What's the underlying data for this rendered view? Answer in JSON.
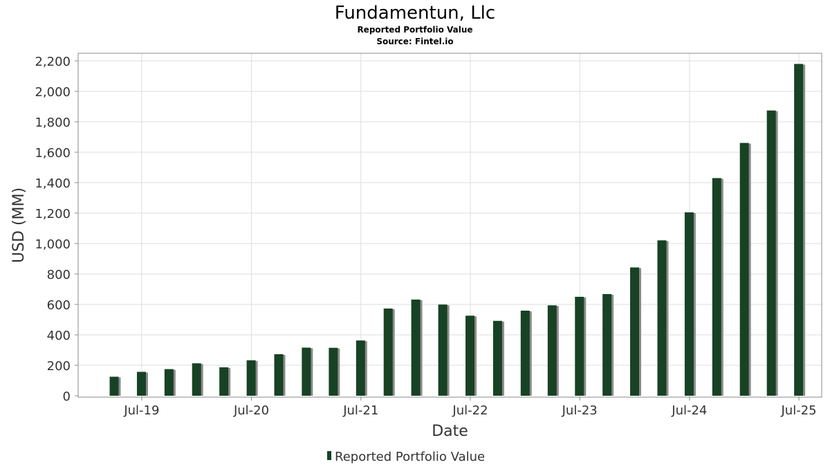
{
  "header": {
    "title": "Fundamentun, Llc",
    "subtitle": "Reported Portfolio Value",
    "source": "Source: Fintel.io"
  },
  "colors": {
    "bar": "#174224",
    "bar_shadow": "#8c8c8c",
    "grid": "#dddddd",
    "axis": "#888888",
    "text": "#333333"
  },
  "chart_data": {
    "type": "bar",
    "title": "Fundamentun, Llc",
    "subtitle": "Reported Portfolio Value",
    "xlabel": "Date",
    "ylabel": "USD (MM)",
    "ylim": [
      0,
      2250
    ],
    "yticks": [
      0,
      200,
      400,
      600,
      800,
      1000,
      1200,
      1400,
      1600,
      1800,
      2000,
      2200
    ],
    "ytick_labels": [
      "0",
      "200",
      "400",
      "600",
      "800",
      "1,000",
      "1,200",
      "1,400",
      "1,600",
      "1,800",
      "2,000",
      "2,200"
    ],
    "xlim": [
      "2018-12-01",
      "2025-09-15"
    ],
    "xticks": [
      "2019-07-01",
      "2020-07-01",
      "2021-07-01",
      "2022-07-01",
      "2023-07-01",
      "2024-07-01",
      "2025-07-01"
    ],
    "xtick_labels": [
      "Jul-19",
      "Jul-20",
      "Jul-21",
      "Jul-22",
      "Jul-23",
      "Jul-24",
      "Jul-25"
    ],
    "grid": true,
    "legend": "bottom-center",
    "series": [
      {
        "name": "Reported Portfolio Value",
        "x": [
          "2019-03-31",
          "2019-06-30",
          "2019-09-30",
          "2019-12-31",
          "2020-03-31",
          "2020-06-30",
          "2020-09-30",
          "2020-12-31",
          "2021-03-31",
          "2021-06-30",
          "2021-09-30",
          "2021-12-31",
          "2022-03-31",
          "2022-06-30",
          "2022-09-30",
          "2022-12-31",
          "2023-03-31",
          "2023-06-30",
          "2023-09-30",
          "2023-12-31",
          "2024-03-31",
          "2024-06-30",
          "2024-09-30",
          "2024-12-31",
          "2025-03-31",
          "2025-06-30"
        ],
        "values": [
          125,
          157,
          175,
          213,
          187,
          233,
          273,
          316,
          315,
          363,
          573,
          632,
          599,
          526,
          492,
          559,
          594,
          650,
          668,
          843,
          1021,
          1205,
          1430,
          1661,
          1874,
          2180
        ]
      }
    ]
  }
}
